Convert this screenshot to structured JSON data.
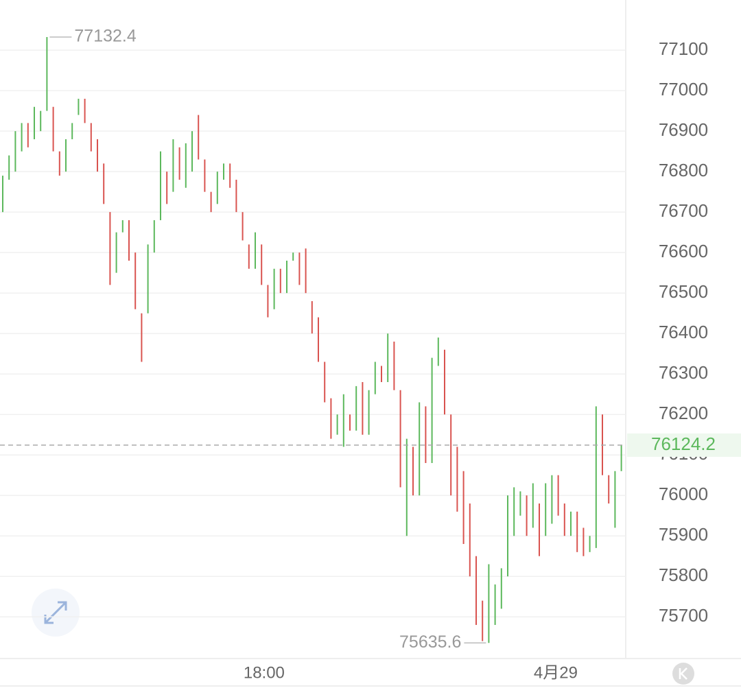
{
  "chart_data": {
    "type": "candlestick",
    "open": [
      76700,
      76780,
      76800,
      76850,
      76920,
      76880,
      76900,
      76950,
      76960,
      76850,
      76800,
      76880,
      76940,
      76980,
      76920,
      76880,
      76820,
      76700,
      76550,
      76650,
      76680,
      76600,
      76450,
      76450,
      76600,
      76680,
      76800,
      76750,
      76860,
      76760,
      76800,
      76940,
      76830,
      76750,
      76720,
      76780,
      76820,
      76780,
      76700,
      76620,
      76560,
      76620,
      76520,
      76460,
      76560,
      76500,
      76580,
      76600,
      76610,
      76480,
      76440,
      76330,
      76240,
      76150,
      76120,
      76200,
      76160,
      76280,
      76150,
      76250,
      76320,
      76280,
      76380,
      76260,
      75900,
      76120,
      76000,
      76220,
      76080,
      76320,
      76360,
      76200,
      76120,
      76060,
      75980,
      75850,
      75740,
      75635.6,
      75680,
      75720,
      75800,
      75900,
      75950,
      76000,
      75920,
      75980,
      75900,
      75930,
      76050,
      75980,
      75900,
      75960,
      75920,
      75860,
      75870,
      76200,
      76050,
      75920,
      76060
    ],
    "close": [
      76790,
      76840,
      76900,
      76920,
      76860,
      76960,
      76950,
      77132.4,
      76850,
      76790,
      76880,
      76920,
      76980,
      76920,
      76850,
      76800,
      76720,
      76520,
      76650,
      76680,
      76580,
      76460,
      76330,
      76620,
      76680,
      76850,
      76720,
      76880,
      76780,
      76870,
      76900,
      76830,
      76750,
      76700,
      76800,
      76820,
      76760,
      76700,
      76630,
      76560,
      76650,
      76520,
      76440,
      76560,
      76500,
      76580,
      76600,
      76520,
      76500,
      76400,
      76330,
      76230,
      76140,
      76200,
      76250,
      76160,
      76270,
      76150,
      76260,
      76330,
      76280,
      76400,
      76260,
      76020,
      76140,
      76000,
      76230,
      76080,
      76340,
      76390,
      76200,
      76000,
      75960,
      75880,
      75800,
      75680,
      75640,
      75830,
      75780,
      75820,
      76000,
      76020,
      76010,
      75900,
      76030,
      75850,
      76030,
      76050,
      75950,
      75900,
      75960,
      75860,
      75850,
      75900,
      76220,
      76050,
      75980,
      76060,
      76124.2
    ],
    "up_color": "#5cb85c",
    "down_color": "#d9534f",
    "ylim": [
      75597,
      77224
    ],
    "yticks": [
      75700,
      75800,
      75900,
      76000,
      76100,
      76200,
      76300,
      76400,
      76500,
      76600,
      76700,
      76800,
      76900,
      77000,
      77100
    ],
    "xticks": [
      {
        "value": 41.4,
        "label": "18:00"
      },
      {
        "value": 87.6,
        "label": "4月29"
      }
    ],
    "grid": true
  }
}
